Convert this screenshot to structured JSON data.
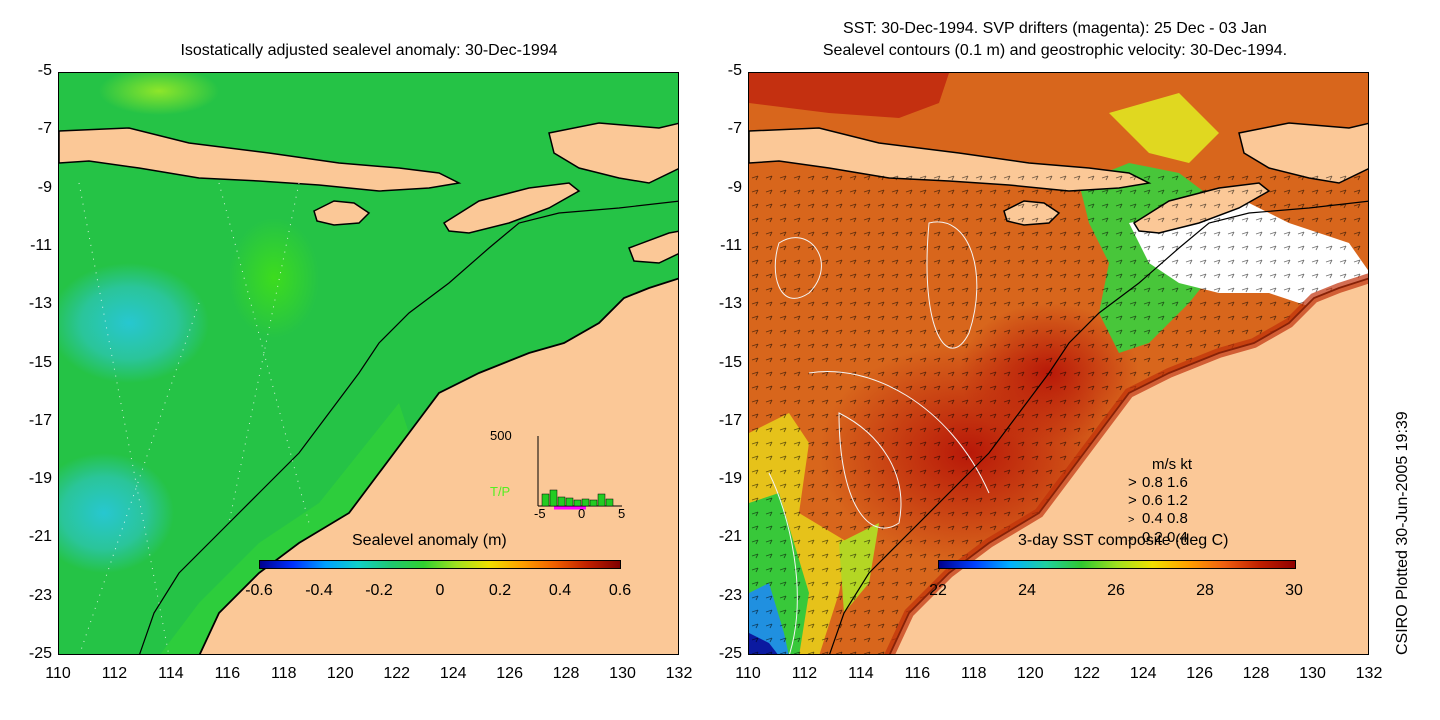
{
  "left_panel": {
    "title": "Isostatically adjusted sealevel anomaly: 30-Dec-1994",
    "colorbar_title": "Sealevel anomaly (m)",
    "colorbar_ticks": [
      "-0.6",
      "-0.4",
      "-0.2",
      "0",
      "0.2",
      "0.4",
      "0.6"
    ],
    "inset": {
      "y_max_label": "500",
      "label": "T/P",
      "x_ticks": [
        "-5",
        "0",
        "5"
      ]
    }
  },
  "right_panel": {
    "title_line1": "SST: 30-Dec-1994. SVP drifters (magenta): 25 Dec - 03 Jan",
    "title_line2": "Sealevel contours (0.1 m) and geostrophic velocity: 30-Dec-1994.",
    "colorbar_title": "3-day SST composite (deg C)",
    "colorbar_ticks": [
      "22",
      "24",
      "26",
      "28",
      "30"
    ],
    "velocity_legend": {
      "header": "m/s  kt",
      "rows": [
        "0.8  1.6",
        "0.6  1.2",
        "0.4  0.8",
        "0.2  0.4"
      ]
    }
  },
  "axes": {
    "y_ticks": [
      "-5",
      "-7",
      "-9",
      "-11",
      "-13",
      "-15",
      "-17",
      "-19",
      "-21",
      "-23",
      "-25"
    ],
    "x_ticks": [
      "110",
      "112",
      "114",
      "116",
      "118",
      "120",
      "122",
      "124",
      "126",
      "128",
      "130",
      "132"
    ]
  },
  "credit": "CSIRO Plotted 30-Jun-2005 19:39",
  "colors": {
    "land": "#fbc897",
    "sea_mid": "#22c43a",
    "sst_warm": "#c0300a"
  }
}
